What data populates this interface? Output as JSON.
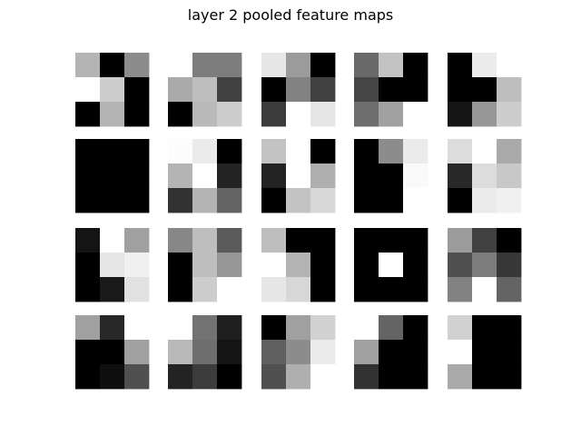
{
  "title": "layer 2 pooled feature maps",
  "chart_data": {
    "type": "heatmap",
    "title": "layer 2 pooled feature maps",
    "colormap": "gray",
    "value_range": [
      0,
      255
    ],
    "grid_rows": 4,
    "grid_cols": 5,
    "axes_visible": false,
    "maps": [
      [
        [
          180,
          0,
          140
        ],
        [
          255,
          205,
          0
        ],
        [
          0,
          180,
          0
        ]
      ],
      [
        [
          255,
          125,
          125
        ],
        [
          170,
          190,
          65
        ],
        [
          0,
          185,
          205
        ]
      ],
      [
        [
          230,
          155,
          0
        ],
        [
          0,
          130,
          65
        ],
        [
          60,
          255,
          230
        ]
      ],
      [
        [
          105,
          195,
          0
        ],
        [
          70,
          0,
          0
        ],
        [
          110,
          160,
          255
        ]
      ],
      [
        [
          0,
          235,
          255
        ],
        [
          0,
          0,
          190
        ],
        [
          20,
          150,
          205
        ]
      ],
      [
        [
          0,
          0,
          0
        ],
        [
          0,
          0,
          0
        ],
        [
          0,
          0,
          0
        ]
      ],
      [
        [
          252,
          235,
          0
        ],
        [
          180,
          255,
          35
        ],
        [
          50,
          180,
          100
        ]
      ],
      [
        [
          195,
          255,
          0
        ],
        [
          35,
          255,
          175
        ],
        [
          0,
          195,
          215
        ]
      ],
      [
        [
          0,
          140,
          235
        ],
        [
          0,
          0,
          250
        ],
        [
          0,
          0,
          255
        ]
      ],
      [
        [
          220,
          255,
          170
        ],
        [
          40,
          220,
          200
        ],
        [
          0,
          235,
          240
        ]
      ],
      [
        [
          20,
          255,
          160
        ],
        [
          0,
          230,
          240
        ],
        [
          0,
          25,
          225
        ]
      ],
      [
        [
          135,
          190,
          90
        ],
        [
          0,
          190,
          150
        ],
        [
          0,
          205,
          255
        ]
      ],
      [
        [
          190,
          0,
          0
        ],
        [
          255,
          180,
          0
        ],
        [
          230,
          215,
          0
        ]
      ],
      [
        [
          0,
          0,
          0
        ],
        [
          0,
          255,
          0
        ],
        [
          0,
          0,
          0
        ]
      ],
      [
        [
          155,
          65,
          0
        ],
        [
          80,
          125,
          55
        ],
        [
          130,
          255,
          100
        ]
      ],
      [
        [
          160,
          40,
          255
        ],
        [
          0,
          0,
          160
        ],
        [
          0,
          15,
          80
        ]
      ],
      [
        [
          255,
          115,
          30
        ],
        [
          185,
          110,
          20
        ],
        [
          35,
          60,
          0
        ]
      ],
      [
        [
          0,
          160,
          210
        ],
        [
          95,
          140,
          235
        ],
        [
          80,
          175,
          255
        ]
      ],
      [
        [
          255,
          100,
          0
        ],
        [
          160,
          0,
          0
        ],
        [
          50,
          0,
          0
        ]
      ],
      [
        [
          210,
          0,
          0
        ],
        [
          255,
          0,
          0
        ],
        [
          170,
          0,
          0
        ]
      ]
    ]
  }
}
